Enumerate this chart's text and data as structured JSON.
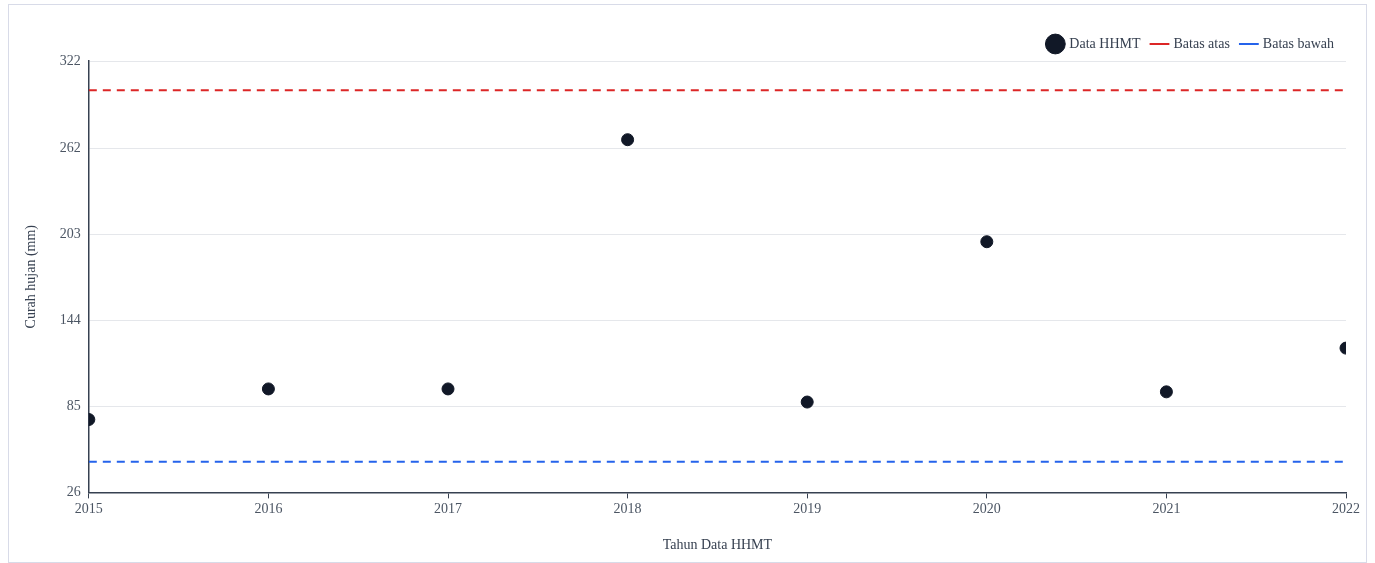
{
  "chart_data": {
    "type": "scatter",
    "xlabel": "Tahun Data HHMT",
    "ylabel": "Curah hujan (mm)",
    "x": [
      2015,
      2016,
      2017,
      2018,
      2019,
      2020,
      2021,
      2022
    ],
    "series": [
      {
        "name": "Data HHMT",
        "color": "#111827",
        "values": [
          76,
          97,
          97,
          268,
          88,
          198,
          95,
          125
        ]
      }
    ],
    "ref_lines": [
      {
        "axis": "y",
        "value": 302,
        "label": "Batas atas",
        "color": "#dc2626",
        "line_style": "dashed"
      },
      {
        "axis": "y",
        "value": 47,
        "label": "Batas bawah",
        "color": "#2563eb",
        "line_style": "dashed"
      }
    ],
    "xlim": [
      2015,
      2022
    ],
    "xticks": [
      2015,
      2016,
      2017,
      2018,
      2019,
      2020,
      2021,
      2022
    ],
    "ylim": [
      26,
      322
    ],
    "yticks": [
      26,
      85,
      144,
      203,
      262,
      322
    ],
    "grid": "y",
    "legend": "top right",
    "marker": "circle"
  }
}
